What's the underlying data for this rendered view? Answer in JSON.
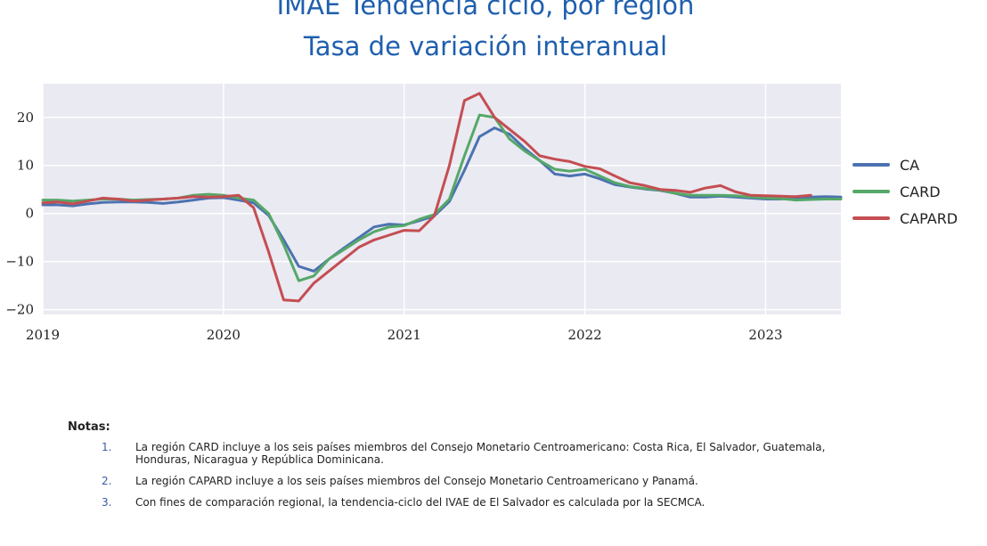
{
  "title_lines": [
    "IMAE Tendencia ciclo, por región",
    "Tasa de variación interanual"
  ],
  "chart_data": {
    "type": "line",
    "title": "IMAE Tendencia ciclo, por región — Tasa de variación interanual",
    "x_start": "2019-01",
    "x_ticks": [
      "2019",
      "2020",
      "2021",
      "2022",
      "2023"
    ],
    "xlim": [
      "2019-01",
      "2023-06"
    ],
    "y_ticks": [
      20,
      10,
      0,
      -10,
      -20
    ],
    "y_tick_labels": [
      "20",
      "10",
      "0",
      "−10",
      "−20"
    ],
    "ylim": [
      -21,
      27
    ],
    "grid": true,
    "legend_position": "right",
    "series": [
      {
        "name": "CA",
        "color": "#4c72b0",
        "values": [
          1.8,
          1.8,
          1.6,
          2.0,
          2.3,
          2.4,
          2.4,
          2.3,
          2.1,
          2.4,
          2.8,
          3.2,
          3.3,
          2.8,
          2.2,
          -0.4,
          -5.5,
          -11.0,
          -12.0,
          -9.5,
          -7.2,
          -5.0,
          -2.8,
          -2.2,
          -2.4,
          -1.5,
          -0.5,
          2.5,
          9.0,
          16.0,
          17.8,
          16.5,
          13.5,
          11.0,
          8.2,
          7.8,
          8.2,
          7.2,
          6.0,
          5.5,
          5.1,
          4.8,
          4.2,
          3.4,
          3.4,
          3.6,
          3.4,
          3.2,
          3.0,
          3.0,
          3.2,
          3.4,
          3.5,
          3.4
        ]
      },
      {
        "name": "CARD",
        "color": "#55a868",
        "values": [
          2.8,
          2.8,
          2.6,
          2.8,
          3.0,
          3.0,
          2.8,
          2.9,
          3.0,
          3.2,
          3.8,
          4.0,
          3.8,
          3.2,
          2.8,
          0.0,
          -6.5,
          -14.0,
          -13.0,
          -9.5,
          -7.5,
          -5.5,
          -3.8,
          -2.8,
          -2.5,
          -1.2,
          -0.2,
          3.0,
          12.0,
          20.5,
          20.0,
          15.5,
          13.0,
          11.0,
          9.2,
          8.8,
          9.2,
          7.8,
          6.4,
          5.6,
          5.2,
          4.9,
          4.2,
          3.8,
          3.8,
          3.8,
          3.7,
          3.4,
          3.2,
          3.1,
          2.8,
          2.9,
          3.0,
          3.0
        ]
      },
      {
        "name": "CAPARD",
        "color": "#c44e52",
        "values": [
          2.2,
          2.4,
          2.0,
          2.6,
          3.2,
          3.0,
          2.6,
          2.8,
          3.0,
          3.2,
          3.5,
          3.4,
          3.5,
          3.8,
          1.2,
          -8.0,
          -18.0,
          -18.2,
          -14.5,
          -12.0,
          -9.5,
          -7.0,
          -5.5,
          -4.5,
          -3.5,
          -3.6,
          -0.5,
          10.0,
          23.5,
          25.0,
          20.0,
          17.5,
          15.0,
          12.0,
          11.3,
          10.8,
          9.8,
          9.3,
          7.8,
          6.4,
          5.8,
          5.0,
          4.8,
          4.4,
          5.3,
          5.8,
          4.5,
          3.8,
          3.7,
          3.6,
          3.5,
          3.8
        ]
      }
    ]
  },
  "notes": {
    "title": "Notas:",
    "items": [
      {
        "num": "1.",
        "text": "La región CARD incluye a los seis países miembros del Consejo Monetario Centroamericano: Costa Rica, El Salvador, Guatemala, Honduras, Nicaragua y República Dominicana."
      },
      {
        "num": "2.",
        "text": "La región CAPARD incluye a los seis países miembros del Consejo Monetario Centroamericano y Panamá."
      },
      {
        "num": "3.",
        "text": "Con fines de comparación regional, la tendencia-ciclo del IVAE de El Salvador es calculada por la SECMCA."
      }
    ]
  }
}
